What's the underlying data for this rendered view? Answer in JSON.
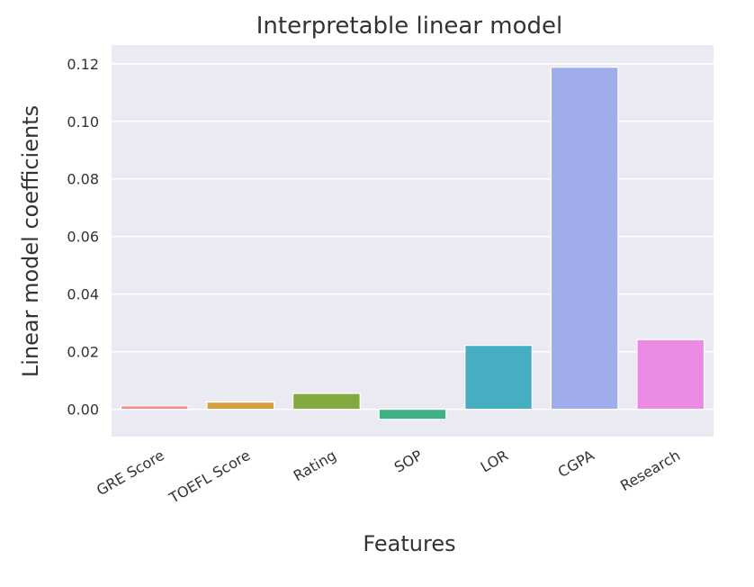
{
  "chart_data": {
    "type": "bar",
    "title": "Interpretable linear model",
    "xlabel": "Features",
    "ylabel": "Linear model coefficients",
    "categories": [
      "GRE Score",
      "TOEFL Score",
      "Rating",
      "SOP",
      "LOR",
      "CGPA",
      "Research"
    ],
    "values": [
      0.0012,
      0.0025,
      0.0055,
      -0.0035,
      0.0222,
      0.1188,
      0.0242
    ],
    "colors": [
      "#F28E86",
      "#D4A03F",
      "#82A940",
      "#3DB184",
      "#47AEC1",
      "#A0ACEB",
      "#EB8AE2"
    ],
    "ylim": [
      -0.0095,
      0.1265
    ],
    "yticks": [
      0.0,
      0.02,
      0.04,
      0.06,
      0.08,
      0.1,
      0.12
    ],
    "ytick_labels": [
      "0.00",
      "0.02",
      "0.04",
      "0.06",
      "0.08",
      "0.10",
      "0.12"
    ],
    "grid": true,
    "style": {
      "background": "#EAEAF2",
      "grid_color": "#FFFFFF"
    }
  }
}
